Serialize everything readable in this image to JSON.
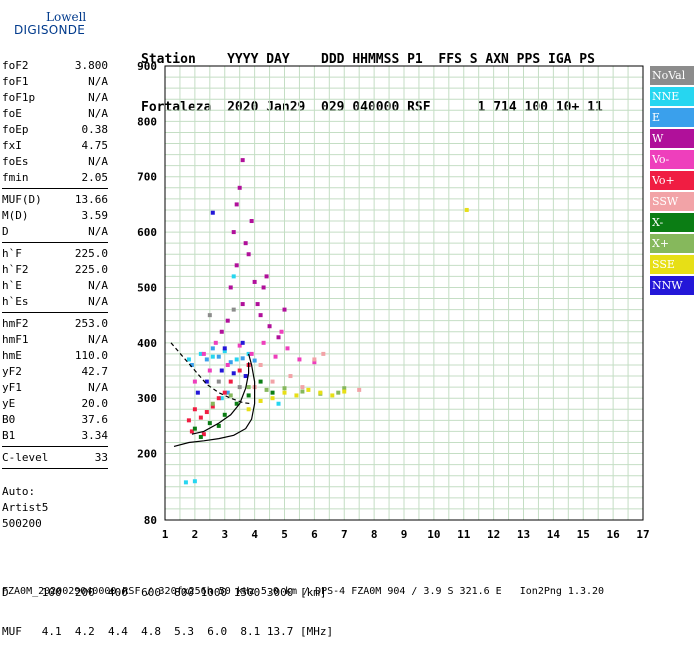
{
  "logo": {
    "line1": "Lowell",
    "line2": "DIGISONDE"
  },
  "header": {
    "line1": "Station    YYYY DAY    DDD HHMMSS P1  FFS S AXN PPS IGA PS",
    "line2": "Fortaleza  2020 Jan29  029 040000 RSF      1 714 100 10+ 11"
  },
  "params": [
    {
      "label": "foF2",
      "value": "3.800"
    },
    {
      "label": "foF1",
      "value": "N/A"
    },
    {
      "label": "foF1p",
      "value": "N/A"
    },
    {
      "label": "foE",
      "value": "N/A"
    },
    {
      "label": "foEp",
      "value": "0.38"
    },
    {
      "label": "fxI",
      "value": "4.75"
    },
    {
      "label": "foEs",
      "value": "N/A"
    },
    {
      "label": "fmin",
      "value": "2.05"
    },
    {
      "sep": true
    },
    {
      "label": "MUF(D)",
      "value": "13.66"
    },
    {
      "label": "M(D)",
      "value": "3.59"
    },
    {
      "label": "D",
      "value": "N/A"
    },
    {
      "sep": true
    },
    {
      "label": "h`F",
      "value": "225.0"
    },
    {
      "label": "h`F2",
      "value": "225.0"
    },
    {
      "label": "h`E",
      "value": "N/A"
    },
    {
      "label": "h`Es",
      "value": "N/A"
    },
    {
      "sep": true
    },
    {
      "label": "hmF2",
      "value": "253.0"
    },
    {
      "label": "hmF1",
      "value": "N/A"
    },
    {
      "label": "hmE",
      "value": "110.0"
    },
    {
      "label": "yF2",
      "value": "42.7"
    },
    {
      "label": "yF1",
      "value": "N/A"
    },
    {
      "label": "yE",
      "value": "20.0"
    },
    {
      "label": "B0",
      "value": "37.6"
    },
    {
      "label": "B1",
      "value": "3.34"
    },
    {
      "sep": true
    },
    {
      "label": "C-level",
      "value": "33"
    },
    {
      "sep": true
    }
  ],
  "auto": {
    "line1": "Auto:",
    "line2": "Artist5",
    "line3": "500200"
  },
  "bottom": {
    "d_row": "D     100  200  400  600  800 1000 1500 3000 [km]",
    "muf_row": "MUF   4.1  4.2  4.4  4.8  5.3  6.0  8.1 13.7 [MHz]"
  },
  "footer": "FZA0M_2020029040000.RSF / 320fx256h 50 kHz 5.0 km / DPS-4 FZA0M 904 / 3.9 S 321.6 E   Ion2Png 1.3.20",
  "legend": [
    {
      "label": "NoVal",
      "color": "#8c8c8c"
    },
    {
      "label": "NNE",
      "color": "#26d6f0"
    },
    {
      "label": "E",
      "color": "#3aa0ec"
    },
    {
      "label": "W",
      "color": "#b0109a"
    },
    {
      "label": "Vo-",
      "color": "#ee3fbc"
    },
    {
      "label": "Vo+",
      "color": "#f01d42"
    },
    {
      "label": "SSW",
      "color": "#f2a3a7"
    },
    {
      "label": "X-",
      "color": "#0b7d14"
    },
    {
      "label": "X+",
      "color": "#86b85c"
    },
    {
      "label": "SSE",
      "color": "#e7df16"
    },
    {
      "label": "NNW",
      "color": "#2317d8"
    }
  ],
  "chart_data": {
    "type": "scatter",
    "xlabel": "",
    "ylabel": "",
    "xlim": [
      1,
      17
    ],
    "ylim": [
      80,
      900
    ],
    "xticks": [
      1,
      2,
      3,
      4,
      5,
      6,
      7,
      8,
      9,
      10,
      11,
      12,
      13,
      14,
      15,
      16,
      17
    ],
    "yticks": [
      80,
      200,
      300,
      400,
      500,
      600,
      700,
      800,
      900
    ],
    "grid": true,
    "series": [
      {
        "name": "NNE",
        "color": "#26d6f0",
        "points": [
          [
            1.8,
            370
          ],
          [
            2.2,
            380
          ],
          [
            2.6,
            375
          ],
          [
            3.0,
            385
          ],
          [
            3.4,
            370
          ],
          [
            3.8,
            380
          ],
          [
            1.7,
            148
          ],
          [
            2.0,
            150
          ],
          [
            2.9,
            300
          ],
          [
            3.3,
            520
          ],
          [
            4.8,
            290
          ]
        ]
      },
      {
        "name": "E",
        "color": "#3aa0ec",
        "points": [
          [
            1.9,
            360
          ],
          [
            2.4,
            370
          ],
          [
            2.8,
            375
          ],
          [
            3.2,
            365
          ],
          [
            3.6,
            372
          ],
          [
            4.0,
            368
          ],
          [
            2.6,
            390
          ],
          [
            3.1,
            310
          ]
        ]
      },
      {
        "name": "W",
        "color": "#b0109a",
        "points": [
          [
            3.4,
            540
          ],
          [
            3.8,
            560
          ],
          [
            4.0,
            510
          ],
          [
            3.6,
            470
          ],
          [
            4.2,
            450
          ],
          [
            3.3,
            600
          ],
          [
            3.9,
            620
          ],
          [
            3.5,
            680
          ],
          [
            4.3,
            500
          ],
          [
            2.9,
            420
          ],
          [
            3.1,
            440
          ],
          [
            4.4,
            520
          ],
          [
            3.7,
            580
          ],
          [
            4.1,
            470
          ],
          [
            3.2,
            500
          ],
          [
            4.5,
            430
          ],
          [
            5.0,
            460
          ],
          [
            4.8,
            410
          ],
          [
            3.6,
            730
          ],
          [
            3.4,
            650
          ]
        ]
      },
      {
        "name": "Vo-",
        "color": "#ee3fbc",
        "points": [
          [
            2.3,
            380
          ],
          [
            2.7,
            400
          ],
          [
            3.1,
            360
          ],
          [
            3.5,
            395
          ],
          [
            3.9,
            380
          ],
          [
            4.3,
            400
          ],
          [
            4.7,
            375
          ],
          [
            5.1,
            390
          ],
          [
            5.5,
            370
          ],
          [
            6.0,
            365
          ],
          [
            2.0,
            330
          ],
          [
            2.5,
            350
          ],
          [
            4.9,
            420
          ]
        ]
      },
      {
        "name": "Vo+",
        "color": "#f01d42",
        "points": [
          [
            1.8,
            260
          ],
          [
            2.0,
            280
          ],
          [
            2.2,
            265
          ],
          [
            2.4,
            275
          ],
          [
            2.6,
            285
          ],
          [
            2.8,
            300
          ],
          [
            3.0,
            310
          ],
          [
            3.2,
            330
          ],
          [
            3.5,
            350
          ],
          [
            3.8,
            360
          ],
          [
            1.9,
            240
          ],
          [
            2.3,
            235
          ]
        ]
      },
      {
        "name": "SSW",
        "color": "#f2a3a7",
        "points": [
          [
            4.0,
            320
          ],
          [
            4.6,
            330
          ],
          [
            5.2,
            340
          ],
          [
            6.0,
            370
          ],
          [
            6.3,
            380
          ],
          [
            7.5,
            315
          ],
          [
            4.2,
            360
          ],
          [
            5.6,
            320
          ]
        ]
      },
      {
        "name": "X-",
        "color": "#0b7d14",
        "points": [
          [
            2.0,
            245
          ],
          [
            2.5,
            255
          ],
          [
            3.0,
            270
          ],
          [
            3.4,
            290
          ],
          [
            3.8,
            305
          ],
          [
            2.2,
            230
          ],
          [
            2.8,
            250
          ],
          [
            4.2,
            330
          ],
          [
            4.6,
            310
          ]
        ]
      },
      {
        "name": "X+",
        "color": "#86b85c",
        "points": [
          [
            2.6,
            290
          ],
          [
            3.2,
            305
          ],
          [
            3.8,
            320
          ],
          [
            4.4,
            315
          ],
          [
            5.0,
            318
          ],
          [
            5.6,
            312
          ],
          [
            6.2,
            308
          ],
          [
            6.8,
            310
          ],
          [
            7.0,
            318
          ]
        ]
      },
      {
        "name": "SSE",
        "color": "#e7df16",
        "points": [
          [
            4.6,
            300
          ],
          [
            5.0,
            310
          ],
          [
            5.4,
            305
          ],
          [
            5.8,
            315
          ],
          [
            6.2,
            310
          ],
          [
            6.6,
            305
          ],
          [
            7.0,
            312
          ],
          [
            4.2,
            295
          ],
          [
            3.8,
            280
          ],
          [
            11.1,
            640
          ]
        ]
      },
      {
        "name": "NNW",
        "color": "#2317d8",
        "points": [
          [
            2.4,
            330
          ],
          [
            2.9,
            350
          ],
          [
            3.3,
            345
          ],
          [
            3.7,
            340
          ],
          [
            2.1,
            310
          ],
          [
            3.0,
            390
          ],
          [
            3.6,
            400
          ],
          [
            2.6,
            635
          ]
        ]
      },
      {
        "name": "NoVal",
        "color": "#8c8c8c",
        "points": [
          [
            2.8,
            330
          ],
          [
            3.5,
            320
          ],
          [
            3.3,
            460
          ],
          [
            2.5,
            450
          ]
        ]
      }
    ],
    "curves": [
      {
        "name": "profile",
        "points": [
          [
            1.3,
            213
          ],
          [
            1.8,
            220
          ],
          [
            2.3,
            223
          ],
          [
            2.8,
            227
          ],
          [
            3.3,
            233
          ],
          [
            3.7,
            245
          ],
          [
            3.9,
            262
          ],
          [
            4.0,
            290
          ],
          [
            4.0,
            330
          ],
          [
            3.9,
            360
          ],
          [
            3.8,
            380
          ]
        ]
      },
      {
        "name": "trace",
        "points": [
          [
            1.9,
            235
          ],
          [
            2.3,
            240
          ],
          [
            2.8,
            255
          ],
          [
            3.2,
            270
          ],
          [
            3.5,
            290
          ],
          [
            3.7,
            318
          ],
          [
            3.8,
            345
          ],
          [
            3.8,
            365
          ]
        ]
      },
      {
        "name": "dashed",
        "dashed": true,
        "points": [
          [
            1.2,
            400
          ],
          [
            1.6,
            375
          ],
          [
            2.0,
            350
          ],
          [
            2.4,
            325
          ],
          [
            2.8,
            310
          ],
          [
            3.2,
            300
          ],
          [
            3.6,
            292
          ],
          [
            3.9,
            290
          ]
        ]
      }
    ]
  }
}
